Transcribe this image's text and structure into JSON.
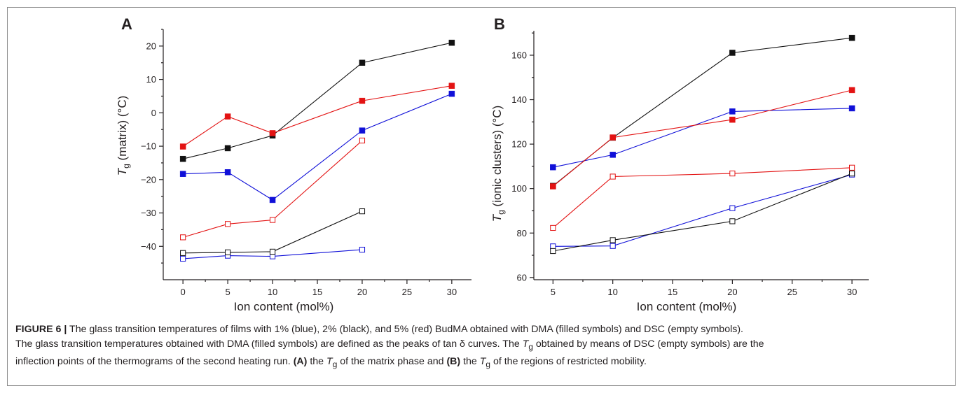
{
  "caption": {
    "figure_label": "FIGURE 6 |",
    "line1_text": " The glass transition temperatures of films with 1% (blue), 2% (black), and 5% (red) BudMA obtained with DMA (filled symbols) and DSC (empty symbols).",
    "line2_a": "The glass transition temperatures obtained with DMA (filled symbols) are defined as the peaks of tan δ curves. The ",
    "tg_T": "T",
    "tg_g": "g",
    "line2_b": " obtained by means of DSC (empty symbols) are the",
    "line3_a": "inflection points of the thermograms of the second heating run. ",
    "label_A": "(A)",
    "line3_b": " the ",
    "line3_c": " of the matrix phase and ",
    "label_B": "(B)",
    "line3_d": " the ",
    "line3_e": " of the regions of restricted mobility."
  },
  "colors": {
    "blue": "#1010d8",
    "black": "#111111",
    "red": "#e31313"
  },
  "chart_data": [
    {
      "type": "line",
      "panel": "A",
      "title": "",
      "xlabel": "Ion content (mol%)",
      "ylabel_symbol": "T",
      "ylabel_sub": "g",
      "ylabel_rest": " (matrix) (°C)",
      "xlim": [
        -2.2,
        32.2
      ],
      "ylim": [
        -50,
        25
      ],
      "xticks": [
        0,
        5,
        10,
        15,
        20,
        25,
        30
      ],
      "yticks": [
        -40,
        -30,
        -20,
        -10,
        0,
        10,
        20
      ],
      "series": [
        {
          "color": "blue",
          "filled": true,
          "x": [
            0,
            5,
            10,
            20,
            30
          ],
          "y": [
            -18.3,
            -17.8,
            -26.1,
            -5.3,
            5.7
          ]
        },
        {
          "color": "black",
          "filled": true,
          "x": [
            0,
            5,
            10,
            20,
            30
          ],
          "y": [
            -13.8,
            -10.6,
            -6.8,
            15,
            21
          ]
        },
        {
          "color": "red",
          "filled": true,
          "x": [
            0,
            5,
            10,
            20,
            30
          ],
          "y": [
            -10.1,
            -1.1,
            -6.1,
            3.6,
            8.1
          ]
        },
        {
          "color": "blue",
          "filled": false,
          "x": [
            0,
            5,
            10,
            20
          ],
          "y": [
            -43.7,
            -42.8,
            -43,
            -41
          ]
        },
        {
          "color": "black",
          "filled": false,
          "x": [
            0,
            5,
            10,
            20
          ],
          "y": [
            -42,
            -41.8,
            -41.6,
            -29.5
          ]
        },
        {
          "color": "red",
          "filled": false,
          "x": [
            0,
            5,
            10,
            20
          ],
          "y": [
            -37.3,
            -33.3,
            -32.1,
            -8.3
          ]
        }
      ]
    },
    {
      "type": "line",
      "panel": "B",
      "title": "",
      "xlabel": "Ion content (mol%)",
      "ylabel_symbol": "T",
      "ylabel_sub": "g",
      "ylabel_rest": " (ionic clusters) (°C)",
      "xlim": [
        3.4,
        31.4
      ],
      "ylim": [
        59,
        171
      ],
      "xticks": [
        5,
        10,
        15,
        20,
        25,
        30
      ],
      "yticks": [
        60,
        80,
        100,
        120,
        140,
        160
      ],
      "series": [
        {
          "color": "blue",
          "filled": true,
          "x": [
            5,
            10,
            20,
            30
          ],
          "y": [
            109.6,
            115.2,
            134.7,
            136.1
          ]
        },
        {
          "color": "black",
          "filled": true,
          "x": [
            5,
            10,
            20,
            30
          ],
          "y": [
            101.2,
            122.9,
            161.1,
            167.8
          ]
        },
        {
          "color": "red",
          "filled": true,
          "x": [
            5,
            10,
            20,
            30
          ],
          "y": [
            101,
            123,
            131,
            144.3
          ]
        },
        {
          "color": "blue",
          "filled": false,
          "x": [
            5,
            10,
            20,
            30
          ],
          "y": [
            74,
            74.2,
            91.2,
            106.3
          ]
        },
        {
          "color": "black",
          "filled": false,
          "x": [
            5,
            10,
            20,
            30
          ],
          "y": [
            71.9,
            76.8,
            85.3,
            106.8
          ]
        },
        {
          "color": "red",
          "filled": false,
          "x": [
            5,
            10,
            20,
            30
          ],
          "y": [
            82.3,
            105.4,
            106.8,
            109.4
          ]
        }
      ]
    }
  ]
}
